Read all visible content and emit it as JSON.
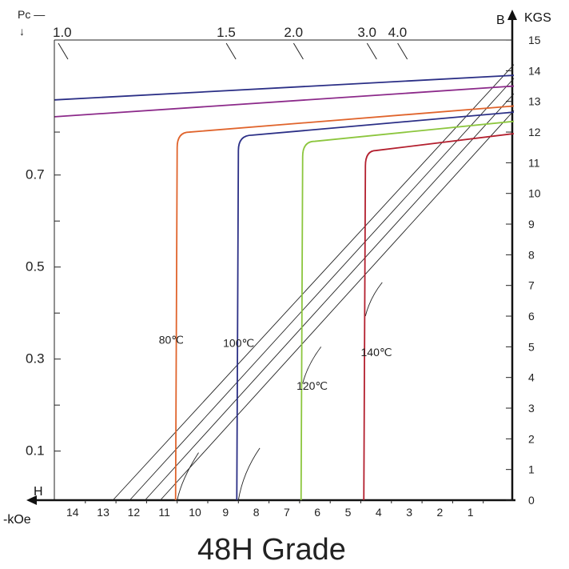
{
  "chart_data": {
    "type": "line",
    "title": "48H Grade",
    "xlabel": "-kOe",
    "xaxis_marker": "H",
    "ylabel_right": "KGS",
    "yaxis_marker": "B",
    "pc_axis_label": "Pc —",
    "pc_arrow": "↓",
    "xlim": [
      0,
      15
    ],
    "ylim": [
      0,
      15
    ],
    "x_ticks": [
      14,
      13,
      12,
      11,
      10,
      9,
      8,
      7,
      6,
      5,
      4,
      3,
      2,
      1
    ],
    "x_tick_labels": [
      "14",
      "13",
      "12",
      "11",
      "10",
      "9",
      "8",
      "7",
      "6",
      "5",
      "4",
      "3",
      "2",
      "1"
    ],
    "y_right_ticks": [
      0,
      1,
      2,
      3,
      4,
      5,
      6,
      7,
      8,
      9,
      10,
      11,
      12,
      13,
      14,
      15
    ],
    "y_right_tick_labels": [
      "0",
      "1",
      "2",
      "3",
      "4",
      "5",
      "6",
      "7",
      "8",
      "9",
      "10",
      "11",
      "12",
      "13",
      "14",
      "15"
    ],
    "y_left_ticks": [
      0.1,
      0.3,
      0.5,
      0.7
    ],
    "y_left_tick_labels": [
      "0.1",
      "0.3",
      "0.5",
      "0.7"
    ],
    "y_left_tick_positions": [
      1.6,
      4.6,
      7.6,
      10.6
    ],
    "y_left_minor_positions": [
      3.1,
      6.1,
      9.1,
      12.0
    ],
    "pc_load_lines": [
      {
        "label": "1.0",
        "h": 15,
        "b": 15
      },
      {
        "label": "1.5",
        "h": 9.5,
        "b": 15
      },
      {
        "label": "2.0",
        "h": 7.3,
        "b": 15
      },
      {
        "label": "3.0",
        "h": 4.9,
        "b": 15
      },
      {
        "label": "4.0",
        "h": 3.9,
        "b": 15
      }
    ],
    "series": [
      {
        "name": "",
        "color": "#2b2f86",
        "kind": "B",
        "points": [
          [
            15,
            13.05
          ],
          [
            0,
            13.85
          ]
        ]
      },
      {
        "name": "",
        "color": "#8c2a8a",
        "kind": "B",
        "points": [
          [
            15,
            12.5
          ],
          [
            0,
            13.5
          ]
        ]
      },
      {
        "name": "80℃",
        "color": "#e0642c",
        "kind": "J",
        "hcj": 11.0,
        "knee": [
          11.0,
          11.5
        ],
        "top": [
          10.6,
          12.0
        ],
        "end": [
          0,
          12.85
        ]
      },
      {
        "name": "100℃",
        "color": "#2b2f86",
        "kind": "J",
        "hcj": 9.0,
        "knee": [
          9.0,
          11.4
        ],
        "top": [
          8.55,
          11.9
        ],
        "end": [
          0,
          12.65
        ]
      },
      {
        "name": "120℃",
        "color": "#8cc63e",
        "kind": "J",
        "hcj": 6.9,
        "knee": [
          6.9,
          11.2
        ],
        "top": [
          6.5,
          11.7
        ],
        "end": [
          0,
          12.35
        ]
      },
      {
        "name": "140℃",
        "color": "#b31f2e",
        "kind": "J",
        "hcj": 4.85,
        "knee": [
          4.85,
          10.9
        ],
        "top": [
          4.5,
          11.4
        ],
        "end": [
          0,
          11.95
        ]
      }
    ],
    "normal_curves": [
      {
        "name": "80℃",
        "points": [
          [
            13.0,
            0
          ],
          [
            0,
            14.2
          ]
        ]
      },
      {
        "name": "100℃",
        "points": [
          [
            12.6,
            0
          ],
          [
            0,
            13.85
          ]
        ]
      },
      {
        "name": "120℃",
        "points": [
          [
            12.2,
            0
          ],
          [
            0,
            13.3
          ],
          [
            10.6,
            0
          ],
          [
            10.2,
            1.3
          ]
        ],
        "knee_at": 10.2
      },
      {
        "name": "140℃",
        "points": [
          [
            11.6,
            0
          ],
          [
            0,
            12.65
          ]
        ]
      }
    ],
    "curve_labels": [
      {
        "text": "80℃",
        "h": 11.6,
        "b": 5.1
      },
      {
        "text": "100℃",
        "h": 9.5,
        "b": 5.0
      },
      {
        "text": "120℃",
        "h": 7.1,
        "b": 3.6
      },
      {
        "text": "140℃",
        "h": 5.0,
        "b": 4.7
      }
    ],
    "grid": false,
    "legend": "none"
  }
}
